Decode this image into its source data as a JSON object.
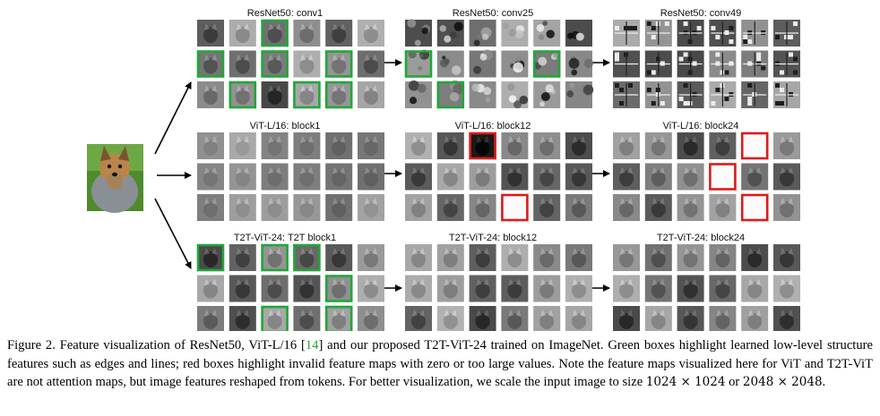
{
  "colors": {
    "highlight_good": "#22a63a",
    "highlight_bad": "#dd1a1a",
    "arrow": "#000000"
  },
  "figure": {
    "input_image": {
      "subject": "yorkshire terrier dog photo"
    },
    "rows": [
      {
        "model": "ResNet50",
        "panels": [
          {
            "title": "ResNet50: conv1",
            "style": "dog-edge",
            "green": [
              [
                0,
                2
              ],
              [
                1,
                0
              ],
              [
                1,
                2
              ],
              [
                1,
                4
              ],
              [
                2,
                1
              ],
              [
                2,
                3
              ],
              [
                2,
                4
              ]
            ],
            "red": []
          },
          {
            "title": "ResNet50: conv25",
            "style": "texture",
            "green": [
              [
                1,
                0
              ],
              [
                1,
                4
              ],
              [
                2,
                1
              ]
            ],
            "red": []
          },
          {
            "title": "ResNet50: conv49",
            "style": "blocky",
            "green": [],
            "red": []
          }
        ]
      },
      {
        "model": "ViT-L/16",
        "panels": [
          {
            "title": "ViT-L/16: block1",
            "style": "gray-flat",
            "green": [],
            "red": []
          },
          {
            "title": "ViT-L/16: block12",
            "style": "gray-dog",
            "green": [],
            "red": [
              [
                0,
                2
              ],
              [
                2,
                3
              ]
            ]
          },
          {
            "title": "ViT-L/16: block24",
            "style": "gray-dog",
            "green": [],
            "red": [
              [
                0,
                4
              ],
              [
                1,
                3
              ],
              [
                2,
                4
              ]
            ]
          }
        ]
      },
      {
        "model": "T2T-ViT-24",
        "panels": [
          {
            "title": "T2T-ViT-24: T2T block1",
            "style": "dog-edge",
            "green": [
              [
                0,
                0
              ],
              [
                0,
                2
              ],
              [
                0,
                3
              ],
              [
                1,
                4
              ],
              [
                2,
                2
              ],
              [
                2,
                4
              ]
            ],
            "red": []
          },
          {
            "title": "T2T-ViT-24: block12",
            "style": "gray-dog",
            "green": [],
            "red": []
          },
          {
            "title": "T2T-ViT-24: block24",
            "style": "gray-dog",
            "green": [],
            "red": []
          }
        ]
      }
    ]
  },
  "caption": {
    "part1": "Figure 2. Feature visualization of ResNet50, ViT-L/16 [",
    "ref": "14",
    "part2": "] and our proposed T2T-ViT-24 trained on ImageNet. Green boxes highlight learned low-level structure features such as edges and lines; red boxes highlight invalid feature maps with zero or too large values. Note the feature maps visualized here for ViT and T2T-ViT are not attention maps, but image features reshaped from tokens. For better visualization, we scale the input image to size ",
    "formula1": "1024 × 1024",
    "or": " or ",
    "formula2": "2048 × 2048",
    "end": "."
  }
}
